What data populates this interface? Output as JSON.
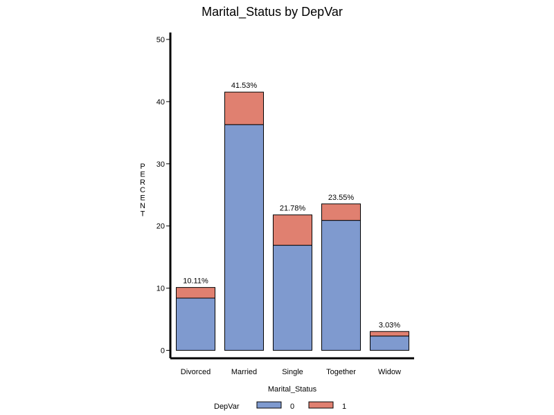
{
  "chart_data": {
    "type": "bar",
    "stacked": true,
    "title": "Marital_Status  by  DepVar",
    "xlabel": "Marital_Status",
    "ylabel": "PERCENT",
    "ylim": [
      0,
      50
    ],
    "yticks": [
      0,
      10,
      20,
      30,
      40,
      50
    ],
    "categories": [
      "Divorced",
      "Married",
      "Single",
      "Together",
      "Widow"
    ],
    "series": [
      {
        "name": "0",
        "color": "#7f9acf",
        "values": [
          8.4,
          36.3,
          16.9,
          20.9,
          2.3
        ]
      },
      {
        "name": "1",
        "color": "#e08070",
        "values": [
          1.71,
          5.23,
          4.88,
          2.65,
          0.73
        ]
      }
    ],
    "totals": [
      10.11,
      41.53,
      21.78,
      23.55,
      3.03
    ],
    "total_labels": [
      "10.11%",
      "41.53%",
      "21.78%",
      "23.55%",
      "3.03%"
    ],
    "legend": {
      "title": "DepVar",
      "placement": "bottom"
    }
  }
}
